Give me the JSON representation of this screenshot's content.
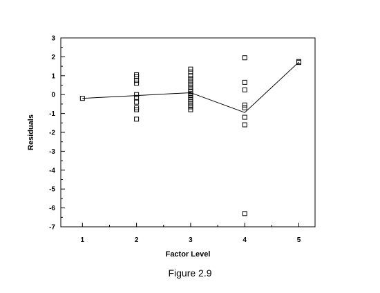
{
  "caption": "Figure 2.9",
  "chart_data": {
    "type": "scatter",
    "title": "",
    "xlabel": "Factor Level",
    "ylabel": "Residuals",
    "xlim": [
      0.6,
      5.3
    ],
    "ylim": [
      -7,
      3
    ],
    "xticks": [
      1,
      2,
      3,
      4,
      5
    ],
    "yticks": [
      -7,
      -6,
      -5,
      -4,
      -3,
      -2,
      -1,
      0,
      1,
      2,
      3
    ],
    "grid": false,
    "legend": "none",
    "series": [
      {
        "marker": "square",
        "points": [
          [
            1,
            -0.2
          ],
          [
            2,
            1.05
          ],
          [
            2,
            0.95
          ],
          [
            2,
            0.75
          ],
          [
            2,
            0.6
          ],
          [
            2,
            0.0
          ],
          [
            2,
            -0.15
          ],
          [
            2,
            -0.4
          ],
          [
            2,
            -0.7
          ],
          [
            2,
            -0.8
          ],
          [
            2,
            -1.3
          ],
          [
            3,
            1.35
          ],
          [
            3,
            1.2
          ],
          [
            3,
            1.0
          ],
          [
            3,
            0.85
          ],
          [
            3,
            0.7
          ],
          [
            3,
            0.55
          ],
          [
            3,
            0.4
          ],
          [
            3,
            0.25
          ],
          [
            3,
            0.15
          ],
          [
            3,
            0.05
          ],
          [
            3,
            -0.05
          ],
          [
            3,
            -0.15
          ],
          [
            3,
            -0.25
          ],
          [
            3,
            -0.35
          ],
          [
            3,
            -0.45
          ],
          [
            3,
            -0.55
          ],
          [
            3,
            -0.65
          ],
          [
            3,
            -0.8
          ],
          [
            4,
            1.95
          ],
          [
            4,
            0.65
          ],
          [
            4,
            0.25
          ],
          [
            4,
            -0.55
          ],
          [
            4,
            -0.7
          ],
          [
            4,
            -1.2
          ],
          [
            4,
            -1.6
          ],
          [
            4,
            -6.3
          ],
          [
            5,
            1.75
          ],
          [
            5,
            1.7
          ]
        ]
      },
      {
        "type": "line",
        "points": [
          [
            1,
            -0.2
          ],
          [
            2,
            -0.05
          ],
          [
            3,
            0.1
          ],
          [
            4,
            -0.95
          ],
          [
            5,
            1.72
          ]
        ]
      }
    ]
  }
}
